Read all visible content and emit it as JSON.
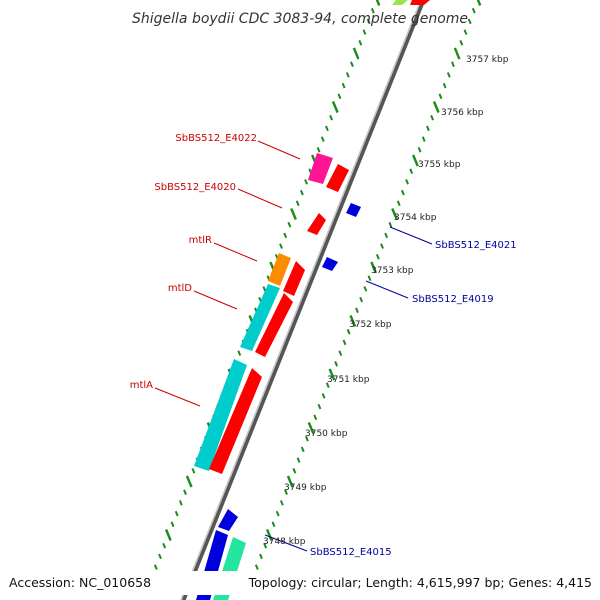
{
  "title": "Shigella boydii CDC 3083-94, complete genome",
  "footer": {
    "accession": "Accession: NC_010658",
    "topology": "Topology: circular; Length: 4,615,997 bp; Genes: 4,415"
  },
  "ticks": [
    "3757 kbp",
    "3756 kbp",
    "3755 kbp",
    "3754 kbp",
    "3753 kbp",
    "3752 kbp",
    "3751 kbp",
    "3750 kbp",
    "3749 kbp",
    "3748 kbp"
  ],
  "labels": {
    "left": [
      "SbBS512_E4022",
      "SbBS512_E4020",
      "mtlR",
      "mtlD",
      "mtlA"
    ],
    "right": [
      "SbBS512_E4021",
      "SbBS512_E4019",
      "SbBS512_E4015"
    ]
  },
  "colors": {
    "axis": "#8c8c8c",
    "forward_cds": "#ff0000",
    "reverse_cds": "#00cccc",
    "small_genes": "#0000dd",
    "gene_label_left": "#cc0000",
    "gene_label_right": "#000099",
    "tick_marks": "#1a8c1a",
    "magenta_gene": "#ff1493",
    "orange_gene": "#ff8c00",
    "green_gene": "#22e6a0"
  }
}
